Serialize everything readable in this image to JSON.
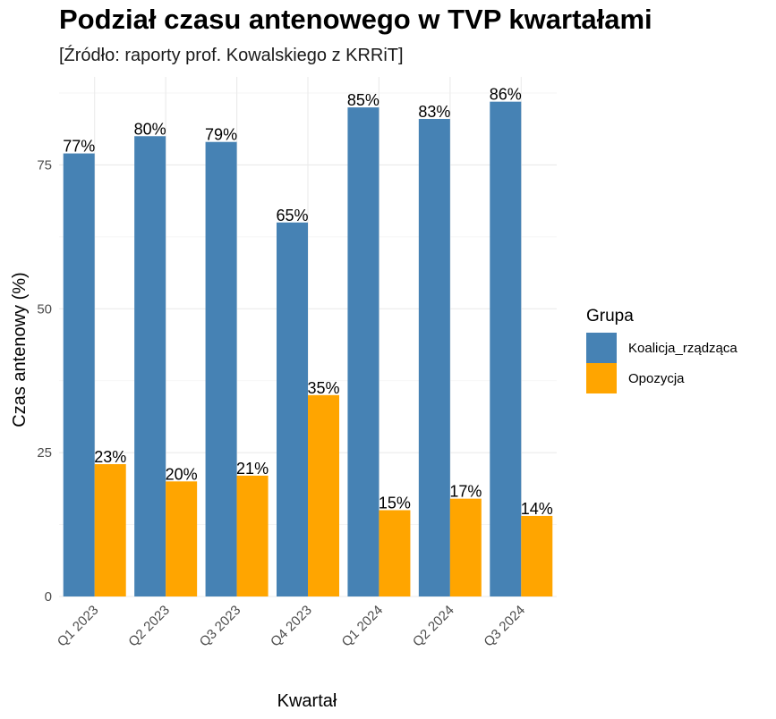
{
  "chart_data": {
    "type": "bar",
    "title": "Podział czasu antenowego w TVP kwartałami",
    "subtitle": "[Źródło: raporty prof. Kowalskiego z KRRiT]",
    "xlabel": "Kwartał",
    "ylabel": "Czas antenowy (%)",
    "categories": [
      "Q1 2023",
      "Q2 2023",
      "Q3 2023",
      "Q4 2023",
      "Q1 2024",
      "Q2 2024",
      "Q3 2024"
    ],
    "series": [
      {
        "name": "Koalicja_rządząca",
        "color": "#4682B4",
        "values": [
          77,
          80,
          79,
          65,
          85,
          83,
          86
        ]
      },
      {
        "name": "Opozycja",
        "color": "#FFA500",
        "values": [
          23,
          20,
          21,
          35,
          15,
          17,
          14
        ]
      }
    ],
    "data_label_suffix": "%",
    "yticks": [
      0,
      25,
      50,
      75
    ],
    "ylim": [
      0,
      90.3
    ],
    "grid": true,
    "legend": {
      "title": "Grupa",
      "position": "right"
    }
  }
}
